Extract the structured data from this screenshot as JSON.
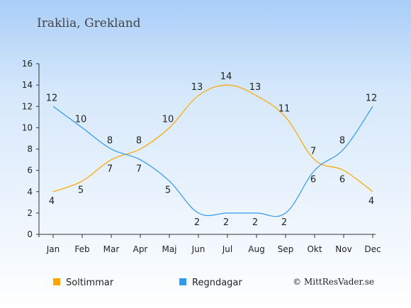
{
  "chart_data": {
    "type": "line",
    "title": "Iraklia, Grekland",
    "categories": [
      "Jan",
      "Feb",
      "Mar",
      "Apr",
      "Maj",
      "Jun",
      "Jul",
      "Aug",
      "Sep",
      "Okt",
      "Nov",
      "Dec"
    ],
    "ylim": [
      0,
      16
    ],
    "yticks": [
      "0",
      "2",
      "4",
      "6",
      "8",
      "10",
      "12",
      "14",
      "16"
    ],
    "grid": false,
    "legend_position": "bottom-left",
    "series": [
      {
        "name": "Soltimmar",
        "color": "#ffa500",
        "values": [
          4,
          5,
          7,
          8,
          10,
          13,
          14,
          13,
          11,
          7,
          6,
          4
        ]
      },
      {
        "name": "Regndagar",
        "color": "#3399ee",
        "values": [
          12,
          10,
          8,
          7,
          5,
          2,
          2,
          2,
          2,
          6,
          8,
          12
        ]
      }
    ],
    "copyright": "© MittResVader.se"
  }
}
